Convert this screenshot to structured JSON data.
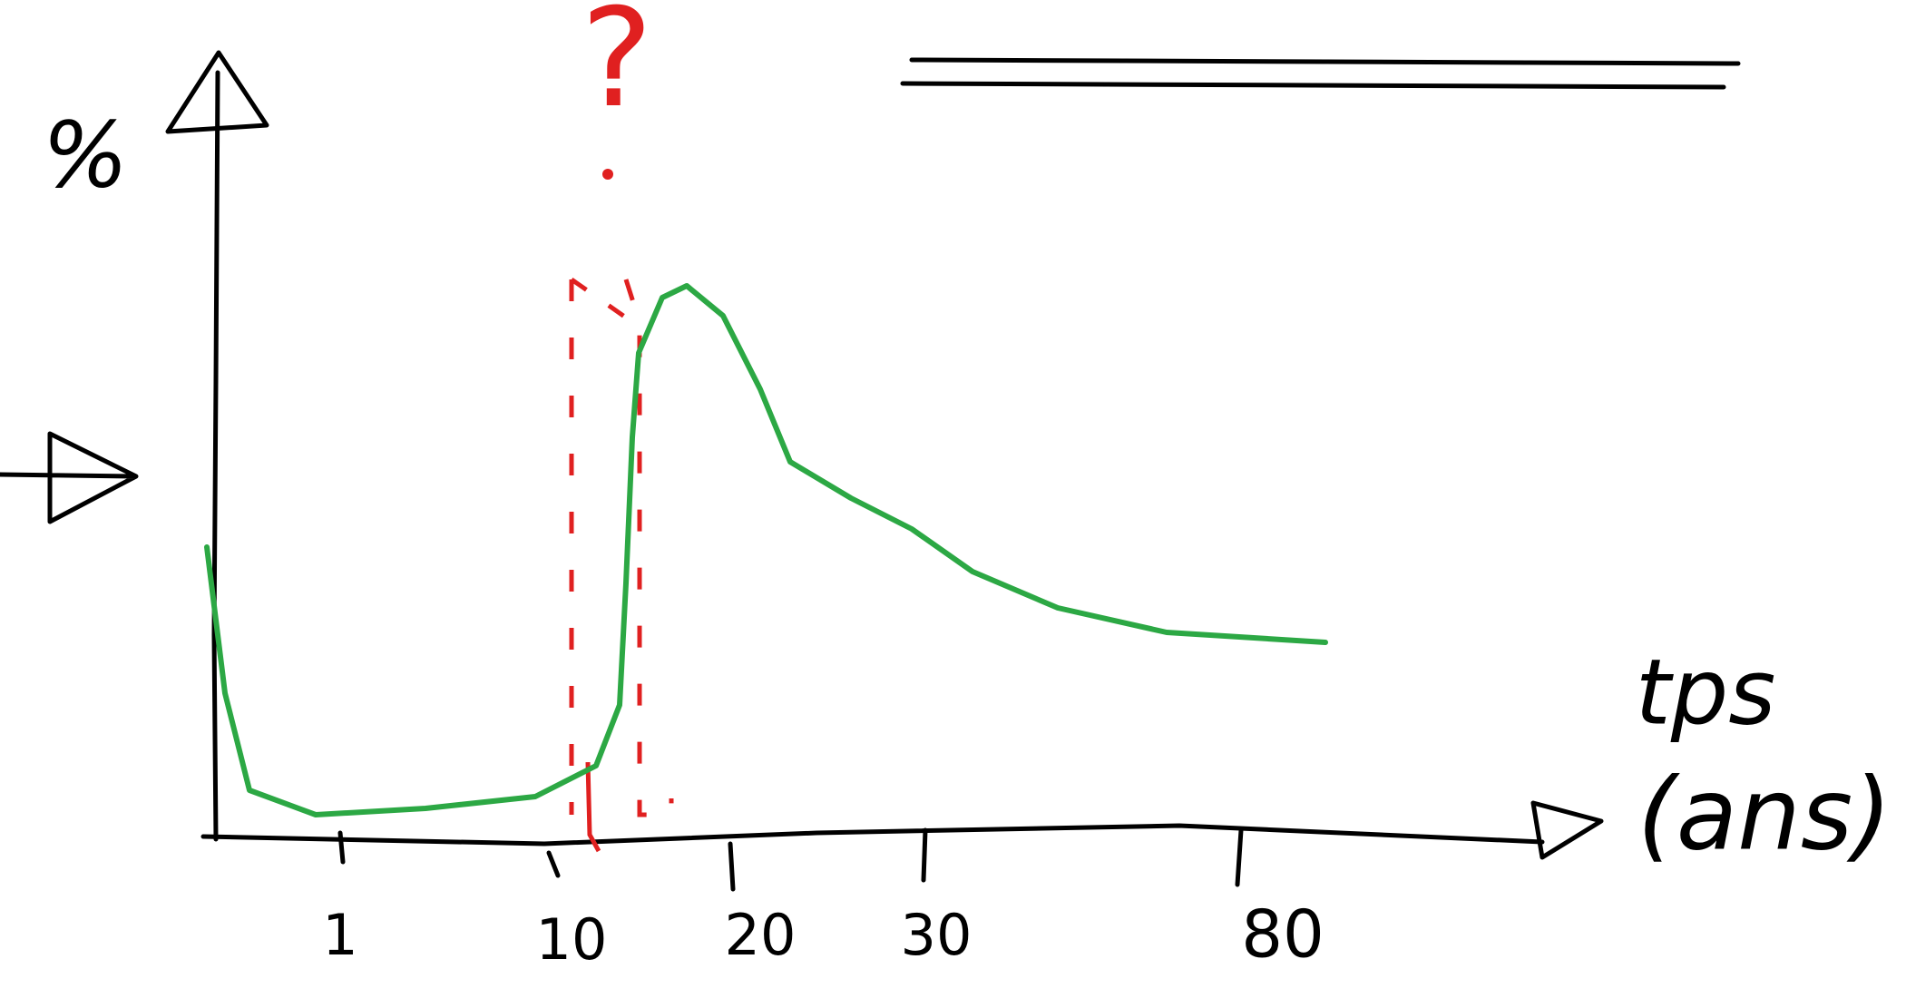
{
  "y_label": "%",
  "x_label": "tps",
  "x_unit": "(ans)",
  "annotation": "?",
  "x_ticks": [
    "1",
    "10",
    "20",
    "30",
    "80"
  ]
}
